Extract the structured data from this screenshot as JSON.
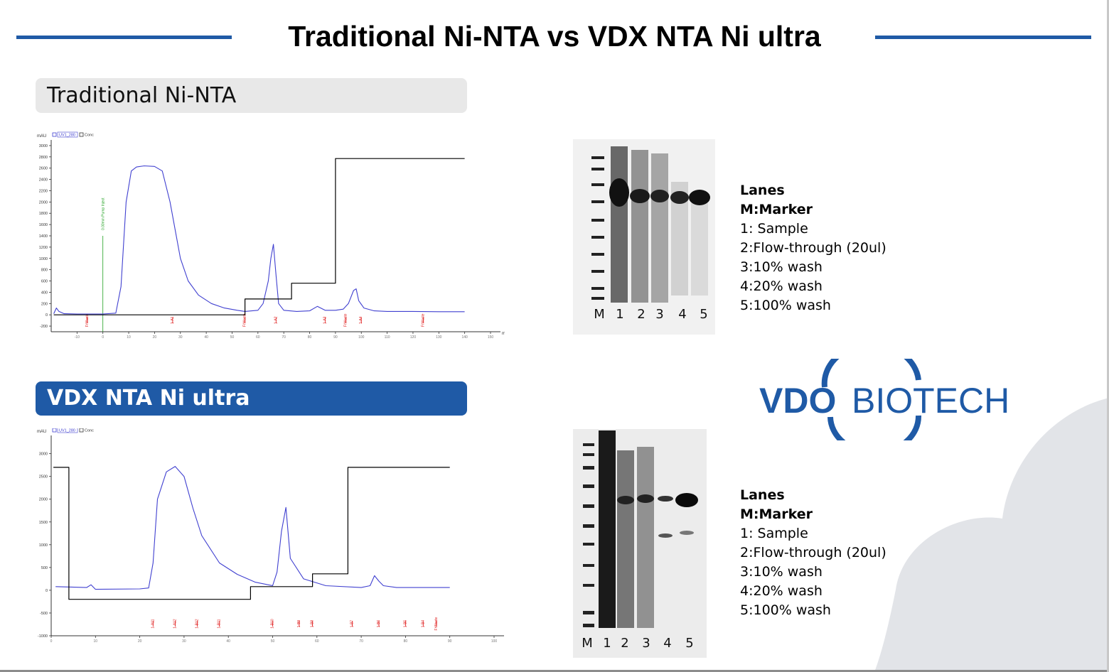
{
  "title": "Traditional Ni-NTA vs VDX NTA Ni ultra",
  "colors": {
    "accent": "#1f5aa6",
    "uv_trace": "#4040d0",
    "conc_trace": "#000000",
    "fraction_marks": "#e02020",
    "injection_mark": "#20a020"
  },
  "sections": [
    {
      "label": "Traditional Ni-NTA"
    },
    {
      "label": "VDX NTA Ni ultra"
    }
  ],
  "legend": {
    "heading": "Lanes",
    "marker": "M:Marker",
    "lanes": [
      "1: Sample",
      "2:Flow-through (20ul)",
      "3:10% wash",
      "4:20% wash",
      "5:100% wash"
    ]
  },
  "gel_lanes": [
    "M",
    "1",
    "2",
    "3",
    "4",
    "5"
  ],
  "logo": {
    "text_bold": "VDO",
    "text_light": "BIOTECH"
  },
  "chart_data": [
    {
      "type": "line",
      "title": "",
      "legend_entries": [
        "UV1_280",
        "Conc"
      ],
      "ylabel": "mAU",
      "xlabel": "mL",
      "xlim": [
        -20,
        150
      ],
      "ylim": [
        -300,
        3100
      ],
      "y_ticks": [
        -200,
        0,
        200,
        400,
        600,
        800,
        1000,
        1200,
        1400,
        1600,
        1800,
        2000,
        2200,
        2400,
        2600,
        2800,
        3000
      ],
      "x_ticks": [
        -10,
        0,
        10,
        20,
        30,
        40,
        50,
        60,
        70,
        80,
        90,
        100,
        110,
        120,
        130,
        140,
        150
      ],
      "series": [
        {
          "name": "UV1_280",
          "x": [
            -19,
            -18,
            -17,
            -15,
            -10,
            0,
            5,
            7,
            9,
            11,
            13,
            16,
            20,
            23,
            26,
            28,
            30,
            33,
            37,
            42,
            47,
            52,
            55,
            60,
            62,
            64,
            65,
            66,
            67,
            68,
            70,
            75,
            80,
            83,
            86,
            90,
            93,
            95,
            97,
            98,
            99,
            101,
            105,
            110,
            120,
            130,
            140
          ],
          "y": [
            20,
            120,
            60,
            20,
            15,
            15,
            30,
            500,
            2000,
            2550,
            2620,
            2640,
            2630,
            2550,
            2000,
            1500,
            1000,
            600,
            350,
            200,
            120,
            80,
            60,
            80,
            200,
            600,
            1000,
            1250,
            700,
            200,
            80,
            60,
            70,
            150,
            80,
            80,
            100,
            200,
            430,
            460,
            250,
            120,
            70,
            60,
            60,
            55,
            55
          ]
        },
        {
          "name": "Conc",
          "x": [
            -19,
            55,
            55,
            73,
            73,
            90,
            90,
            140
          ],
          "y": [
            0,
            0,
            280,
            280,
            560,
            560,
            2770,
            2770
          ]
        }
      ],
      "annotations": {
        "injection": {
          "x": 0,
          "label": "0.00min Pump Inject"
        },
        "fractions": [
          {
            "x": -6,
            "label": "FrWaste"
          },
          {
            "x": 27,
            "label": "1-A1"
          },
          {
            "x": 55,
            "label": "FrWaste"
          },
          {
            "x": 67,
            "label": "1-A2"
          },
          {
            "x": 86,
            "label": "1-A3"
          },
          {
            "x": 94,
            "label": "FrWaste"
          },
          {
            "x": 100,
            "label": "1-A4"
          },
          {
            "x": 124,
            "label": "FrWaste"
          }
        ]
      }
    },
    {
      "type": "line",
      "title": "",
      "legend_entries": [
        "UV1_280",
        "Conc"
      ],
      "ylabel": "mAU",
      "xlabel": "mL",
      "xlim": [
        0,
        100
      ],
      "ylim": [
        -1000,
        3400
      ],
      "y_ticks": [
        -1000,
        -500,
        0,
        500,
        1000,
        1500,
        2000,
        2500,
        3000
      ],
      "x_ticks": [
        0,
        10,
        20,
        30,
        40,
        50,
        60,
        70,
        80,
        90,
        100
      ],
      "series": [
        {
          "name": "UV1_280",
          "x": [
            1,
            8,
            9,
            10,
            20,
            22,
            23,
            24,
            26,
            28,
            30,
            32,
            34,
            38,
            42,
            46,
            50,
            51,
            52,
            53,
            54,
            57,
            62,
            70,
            72,
            73,
            74,
            75,
            78,
            83,
            90
          ],
          "y": [
            80,
            60,
            120,
            20,
            30,
            50,
            600,
            2000,
            2600,
            2720,
            2500,
            1800,
            1200,
            600,
            350,
            180,
            100,
            400,
            1300,
            1820,
            700,
            250,
            100,
            60,
            100,
            320,
            200,
            100,
            60,
            60,
            60
          ]
        },
        {
          "name": "Conc",
          "x": [
            0.5,
            4,
            4,
            45,
            45,
            59,
            59,
            67,
            67,
            90
          ],
          "y": [
            2700,
            2700,
            -200,
            -200,
            80,
            80,
            360,
            360,
            2700,
            2700
          ]
        }
      ],
      "annotations": {
        "fractions": [
          {
            "x": 23,
            "label": "1-A11"
          },
          {
            "x": 28,
            "label": "1-A12"
          },
          {
            "x": 33,
            "label": "1-B12"
          },
          {
            "x": 38,
            "label": "1-B11"
          },
          {
            "x": 50,
            "label": "1-B10"
          },
          {
            "x": 56,
            "label": "1-B9"
          },
          {
            "x": 59,
            "label": "1-B8"
          },
          {
            "x": 68,
            "label": "1-B7"
          },
          {
            "x": 74,
            "label": "1-B6"
          },
          {
            "x": 80,
            "label": "1-B5"
          },
          {
            "x": 84,
            "label": "1-B4"
          },
          {
            "x": 87,
            "label": "FrWaste"
          }
        ]
      }
    }
  ]
}
